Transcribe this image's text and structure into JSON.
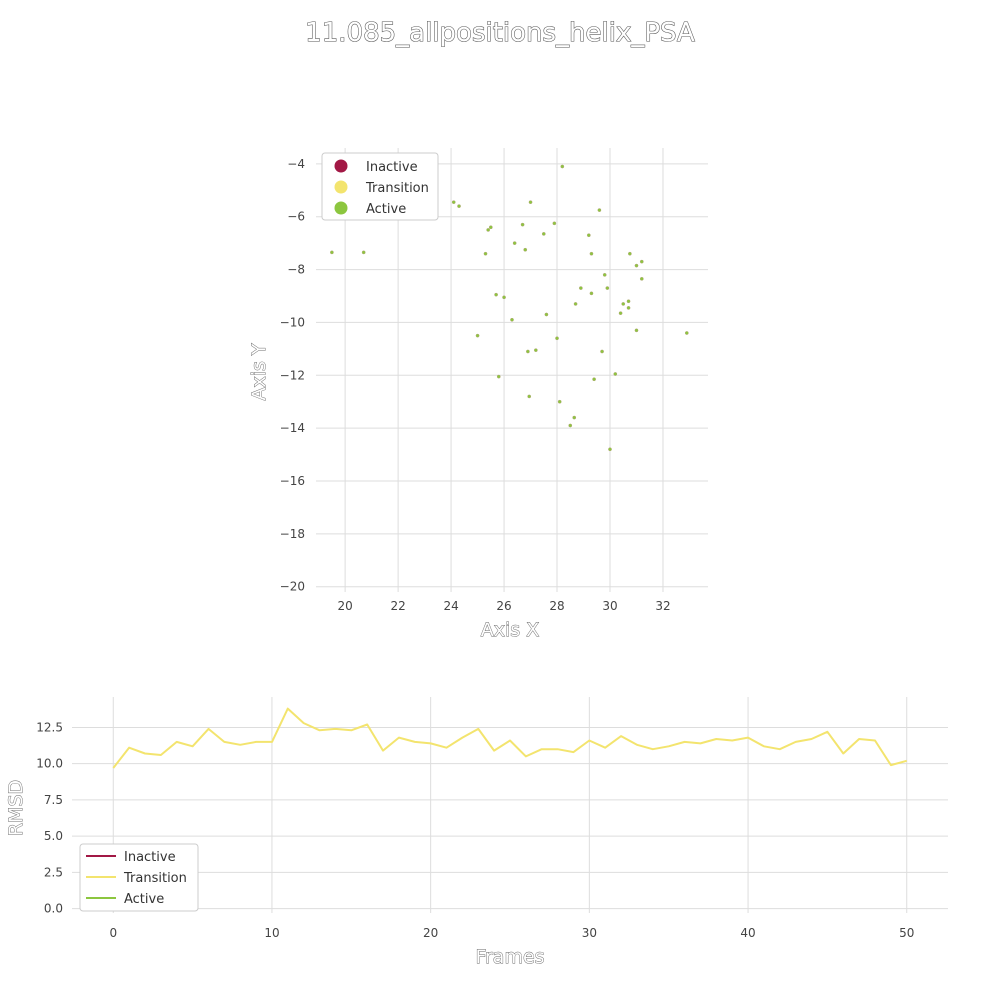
{
  "title": "11.085_allpositions_helix_PSA",
  "colors": {
    "inactive": "#a21845",
    "transition": "#f3e46e",
    "active": "#8cc63f",
    "grid": "#dddddd"
  },
  "chart_data": [
    {
      "type": "scatter",
      "xlabel": "Axis X",
      "ylabel": "Axis Y",
      "xlim": [
        18.9,
        33.7
      ],
      "ylim": [
        -20.2,
        -3.4
      ],
      "xticks": [
        20,
        22,
        24,
        26,
        28,
        30,
        32
      ],
      "yticks": [
        -4,
        -6,
        -8,
        -10,
        -12,
        -14,
        -16,
        -18,
        -20
      ],
      "ytick_labels": [
        "−4",
        "−6",
        "−8",
        "−10",
        "−12",
        "−14",
        "−16",
        "−18",
        "−20"
      ],
      "legend": {
        "placement": "top-left",
        "entries": [
          "Inactive",
          "Transition",
          "Active"
        ]
      },
      "grid": true,
      "series": [
        {
          "name": "Inactive",
          "points": []
        },
        {
          "name": "Transition",
          "points": []
        },
        {
          "name": "Active",
          "points": [
            [
              19.5,
              -7.35
            ],
            [
              20.7,
              -7.35
            ],
            [
              24.1,
              -5.45
            ],
            [
              24.3,
              -5.6
            ],
            [
              25.0,
              -10.5
            ],
            [
              25.3,
              -7.4
            ],
            [
              25.4,
              -6.5
            ],
            [
              25.5,
              -6.4
            ],
            [
              25.7,
              -8.95
            ],
            [
              25.8,
              -12.05
            ],
            [
              26.0,
              -9.05
            ],
            [
              26.3,
              -9.9
            ],
            [
              26.4,
              -7.0
            ],
            [
              26.7,
              -6.3
            ],
            [
              26.8,
              -7.25
            ],
            [
              26.9,
              -11.1
            ],
            [
              26.95,
              -12.8
            ],
            [
              27.0,
              -5.45
            ],
            [
              27.2,
              -11.05
            ],
            [
              27.5,
              -6.65
            ],
            [
              27.6,
              -9.7
            ],
            [
              27.9,
              -6.25
            ],
            [
              28.0,
              -10.6
            ],
            [
              28.1,
              -13.0
            ],
            [
              28.2,
              -4.1
            ],
            [
              28.5,
              -13.9
            ],
            [
              28.65,
              -13.6
            ],
            [
              28.7,
              -9.3
            ],
            [
              28.9,
              -8.7
            ],
            [
              29.2,
              -6.7
            ],
            [
              29.3,
              -7.4
            ],
            [
              29.3,
              -8.9
            ],
            [
              29.4,
              -12.15
            ],
            [
              29.6,
              -5.75
            ],
            [
              29.7,
              -11.1
            ],
            [
              29.8,
              -8.2
            ],
            [
              29.9,
              -8.7
            ],
            [
              30.0,
              -14.8
            ],
            [
              30.2,
              -11.95
            ],
            [
              30.4,
              -9.65
            ],
            [
              30.5,
              -9.3
            ],
            [
              30.7,
              -9.45
            ],
            [
              30.7,
              -9.2
            ],
            [
              30.75,
              -7.4
            ],
            [
              31.0,
              -10.3
            ],
            [
              31.0,
              -7.85
            ],
            [
              31.2,
              -7.7
            ],
            [
              31.2,
              -8.35
            ],
            [
              32.9,
              -10.4
            ]
          ]
        }
      ]
    },
    {
      "type": "line",
      "xlabel": "Frames",
      "ylabel": "RMSD",
      "xlim": [
        -2.6,
        52.6
      ],
      "ylim": [
        -0.3,
        14.6
      ],
      "xticks": [
        0,
        10,
        20,
        30,
        40,
        50
      ],
      "yticks": [
        0.0,
        2.5,
        5.0,
        7.5,
        10.0,
        12.5
      ],
      "ytick_labels": [
        "0.0",
        "2.5",
        "5.0",
        "7.5",
        "10.0",
        "12.5"
      ],
      "legend": {
        "placement": "bottom-left",
        "entries": [
          "Inactive",
          "Transition",
          "Active"
        ]
      },
      "grid": true,
      "series": [
        {
          "name": "Inactive",
          "values": []
        },
        {
          "name": "Transition",
          "values": [
            9.7,
            11.1,
            10.7,
            10.6,
            11.5,
            11.2,
            12.4,
            11.5,
            11.3,
            11.5,
            11.5,
            13.8,
            12.8,
            12.3,
            12.4,
            12.3,
            12.7,
            10.9,
            11.8,
            11.5,
            11.4,
            11.1,
            11.8,
            12.4,
            10.9,
            11.6,
            10.5,
            11.0,
            11.0,
            10.8,
            11.6,
            11.1,
            11.9,
            11.3,
            11.0,
            11.2,
            11.5,
            11.4,
            11.7,
            11.6,
            11.8,
            11.2,
            11.0,
            11.5,
            11.7,
            12.2,
            10.7,
            11.7,
            11.6,
            9.9,
            10.2
          ]
        },
        {
          "name": "Active",
          "values": []
        }
      ]
    }
  ]
}
